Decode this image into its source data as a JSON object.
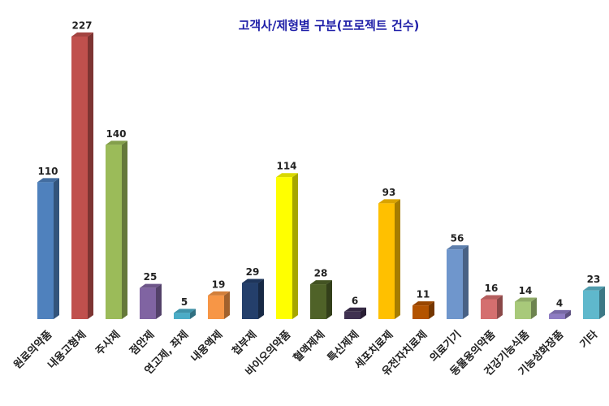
{
  "chart_data": {
    "type": "bar3d",
    "title": "고객사/제형별 구분(프로젝트 건수)",
    "categories": [
      "원료의약품",
      "내용고형제",
      "주사제",
      "점안제",
      "연고제, 좌제",
      "내용액제",
      "첩부제",
      "바이오의약품",
      "혈액제제",
      "특신제제",
      "세포치료제",
      "유전자치료제",
      "의료기기",
      "동물용의약품",
      "건강기능식품",
      "기능성화장품",
      "기타"
    ],
    "values": [
      110,
      227,
      140,
      25,
      5,
      19,
      29,
      114,
      28,
      6,
      93,
      11,
      56,
      16,
      14,
      4,
      23
    ],
    "colors": [
      "#4f81bd",
      "#c0504d",
      "#9bbb59",
      "#8064a2",
      "#4bacc6",
      "#f79646",
      "#243f6b",
      "#ffff00",
      "#4f6228",
      "#3f3151",
      "#ffc000",
      "#b35300",
      "#6f96cc",
      "#d46f6f",
      "#a8c97a",
      "#8e7cc3",
      "#5fb8cc"
    ]
  }
}
